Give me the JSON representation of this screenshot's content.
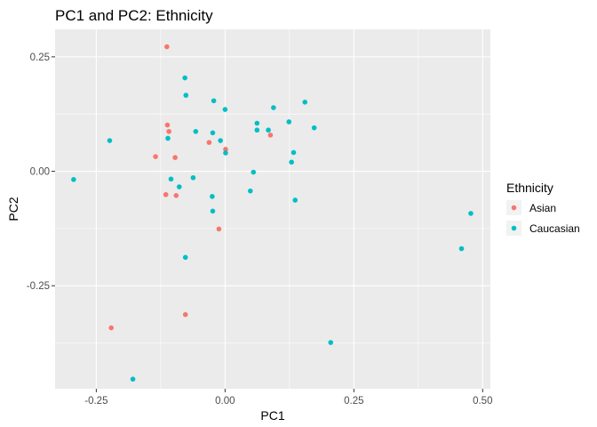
{
  "chart_data": {
    "type": "scatter",
    "title": "PC1 and PC2: Ethnicity",
    "xlabel": "PC1",
    "ylabel": "PC2",
    "xlim": [
      -0.33,
      0.515
    ],
    "ylim": [
      -0.475,
      0.31
    ],
    "x_ticks": [
      -0.25,
      0.0,
      0.25,
      0.5
    ],
    "x_tick_labels": [
      "-0.25",
      "0.00",
      "0.25",
      "0.50"
    ],
    "y_ticks": [
      -0.25,
      0.0,
      0.25
    ],
    "y_tick_labels": [
      "-0.25",
      "0.00",
      "0.25"
    ],
    "grid": true,
    "legend": {
      "title": "Ethnicity",
      "placement": "right"
    },
    "series": [
      {
        "name": "Asian",
        "color": "#f8766d",
        "points": [
          [
            -0.113,
            0.272
          ],
          [
            -0.112,
            0.101
          ],
          [
            -0.109,
            0.087
          ],
          [
            -0.135,
            0.032
          ],
          [
            -0.097,
            0.03
          ],
          [
            -0.115,
            -0.051
          ],
          [
            -0.095,
            -0.053
          ],
          [
            -0.031,
            0.063
          ],
          [
            0.001,
            0.048
          ],
          [
            -0.012,
            -0.126
          ],
          [
            0.088,
            0.079
          ],
          [
            -0.221,
            -0.342
          ],
          [
            -0.077,
            -0.313
          ]
        ]
      },
      {
        "name": "Caucasian",
        "color": "#00bfc4",
        "points": [
          [
            -0.078,
            0.204
          ],
          [
            -0.076,
            0.166
          ],
          [
            -0.022,
            0.154
          ],
          [
            0.0,
            0.135
          ],
          [
            -0.224,
            0.067
          ],
          [
            -0.111,
            0.072
          ],
          [
            -0.057,
            0.087
          ],
          [
            -0.024,
            0.084
          ],
          [
            -0.009,
            0.067
          ],
          [
            0.001,
            0.04
          ],
          [
            0.062,
            0.105
          ],
          [
            0.062,
            0.09
          ],
          [
            0.084,
            0.09
          ],
          [
            0.094,
            0.139
          ],
          [
            0.124,
            0.108
          ],
          [
            0.155,
            0.151
          ],
          [
            0.173,
            0.095
          ],
          [
            0.133,
            0.041
          ],
          [
            0.129,
            0.02
          ],
          [
            0.055,
            -0.002
          ],
          [
            0.049,
            -0.043
          ],
          [
            0.136,
            -0.063
          ],
          [
            -0.294,
            -0.018
          ],
          [
            -0.105,
            -0.017
          ],
          [
            -0.089,
            -0.034
          ],
          [
            -0.062,
            -0.014
          ],
          [
            -0.025,
            -0.055
          ],
          [
            -0.024,
            -0.087
          ],
          [
            -0.077,
            -0.188
          ],
          [
            -0.179,
            -0.454
          ],
          [
            0.205,
            -0.374
          ],
          [
            0.459,
            -0.169
          ],
          [
            0.477,
            -0.092
          ]
        ]
      }
    ]
  }
}
